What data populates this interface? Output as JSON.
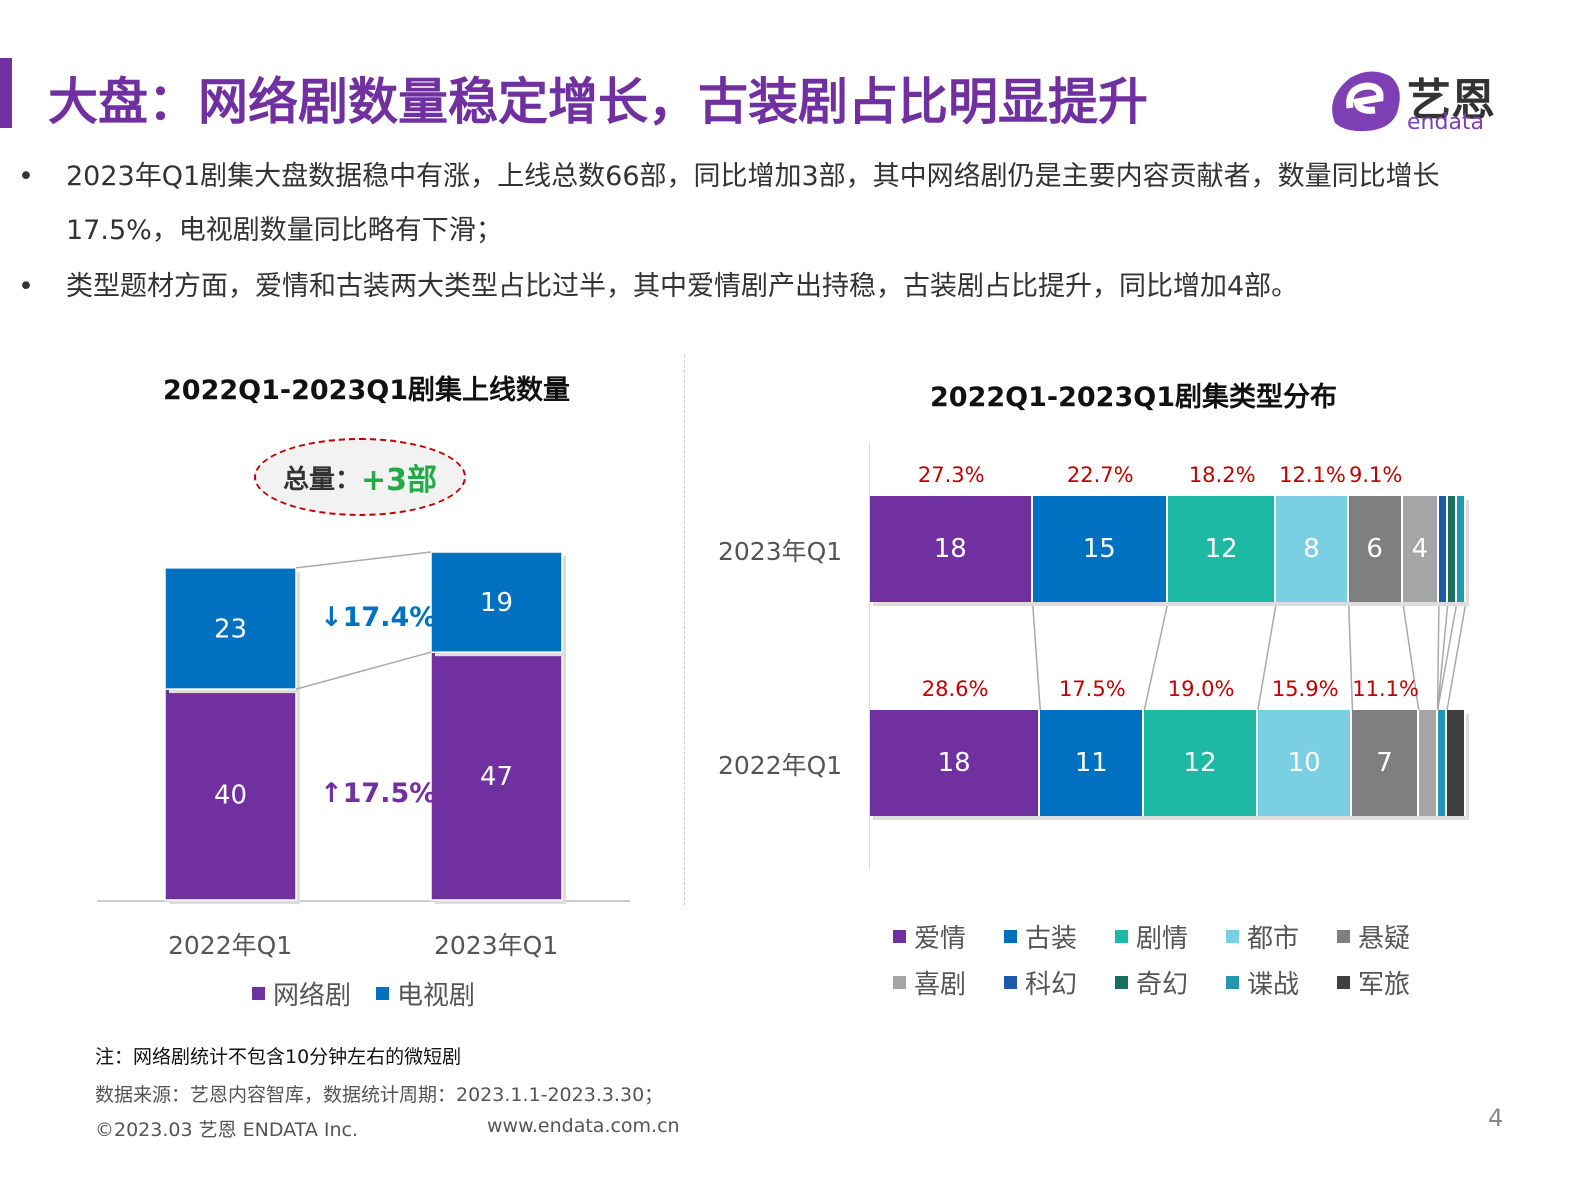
{
  "header": {
    "title": "大盘：网络剧数量稳定增长，古装剧占比明显提升",
    "logo_text": "艺恩",
    "logo_sub": "endata"
  },
  "bullets": [
    {
      "dot": "•",
      "text": "2023年Q1剧集大盘数据稳中有涨，上线总数66部，同比增加3部，其中网络剧仍是主要内容贡献者，数量同比增长17.5%，电视剧数量同比略有下滑；"
    },
    {
      "dot": "•",
      "text": "类型题材方面，爱情和古装两大类型占比过半，其中爱情剧产出持稳，古装剧占比提升，同比增加4部。"
    }
  ],
  "chart_data": [
    {
      "type": "bar",
      "stacked": true,
      "title": "2022Q1-2023Q1剧集上线数量",
      "categories": [
        "2022年Q1",
        "2023年Q1"
      ],
      "series": [
        {
          "name": "网络剧",
          "values": [
            40,
            47
          ],
          "color": "#7030A0"
        },
        {
          "name": "电视剧",
          "values": [
            23,
            19
          ],
          "color": "#0070C0"
        }
      ],
      "annotations": {
        "total_label": "总量：",
        "total_value": "+3部",
        "tv_change": "↓17.4%",
        "web_change": "↑17.5%"
      },
      "ylim": [
        0,
        66
      ]
    },
    {
      "type": "bar",
      "orientation": "horizontal",
      "stacked": true,
      "normalized": true,
      "title": "2022Q1-2023Q1剧集类型分布",
      "categories": [
        "2023年Q1",
        "2022年Q1"
      ],
      "series": [
        {
          "name": "爱情",
          "values": [
            18,
            18
          ],
          "pct": [
            "27.3%",
            "28.6%"
          ],
          "color": "#7030A0"
        },
        {
          "name": "古装",
          "values": [
            15,
            11
          ],
          "pct": [
            "22.7%",
            "17.5%"
          ],
          "color": "#0070C0"
        },
        {
          "name": "剧情",
          "values": [
            12,
            12
          ],
          "pct": [
            "18.2%",
            "19.0%"
          ],
          "color": "#1DB9A5"
        },
        {
          "name": "都市",
          "values": [
            8,
            10
          ],
          "pct": [
            "12.1%",
            "15.9%"
          ],
          "color": "#7ACFE3"
        },
        {
          "name": "悬疑",
          "values": [
            6,
            7
          ],
          "pct": [
            "9.1%",
            "11.1%"
          ],
          "color": "#7F7F7F"
        },
        {
          "name": "喜剧",
          "values": [
            4,
            2
          ],
          "color": "#A5A5A5"
        },
        {
          "name": "科幻",
          "values": [
            1,
            0
          ],
          "color": "#1F5AA8"
        },
        {
          "name": "奇幻",
          "values": [
            1,
            0
          ],
          "color": "#17705E"
        },
        {
          "name": "谍战",
          "values": [
            1,
            1
          ],
          "color": "#2596B0"
        },
        {
          "name": "军旅",
          "values": [
            0,
            2
          ],
          "color": "#404040"
        }
      ]
    }
  ],
  "footer": {
    "note": "注：网络剧统计不包含10分钟左右的微短剧",
    "source": "数据来源：艺恩内容智库，数据统计周期：2023.1.1-2023.3.30；",
    "copyright": "©2023.03 艺恩 ENDATA Inc.",
    "website": "www.endata.com.cn",
    "page": "4"
  }
}
